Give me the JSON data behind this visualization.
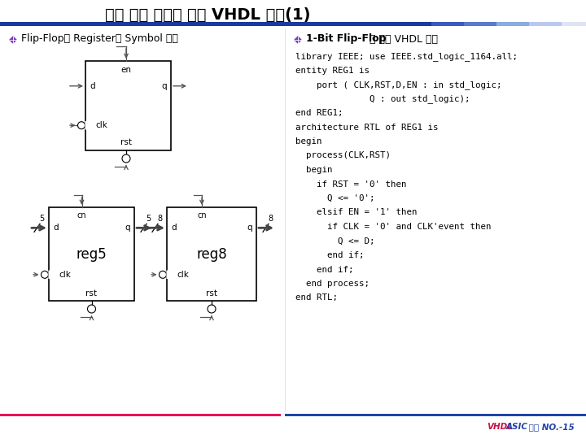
{
  "title_normal": "순서 논리 회로에 대한 ",
  "title_bold": "VHDL 설계(1)",
  "bg_color": "#ffffff",
  "title_color": "#000000",
  "bullet_color": "#7b3fbe",
  "left_bullet_text": "Flip-Flop과 Register의 Symbol 정의",
  "right_bullet_bold": "1-Bit Flip-Flop",
  "right_bullet_normal": "에 대한 VHDL 표현",
  "code_lines": [
    [
      "library IEEE; use IEEE.std_logic_1164.all;",
      false
    ],
    [
      "entity REG1 is",
      false
    ],
    [
      "    port ( CLK,RST,D,EN : in std_logic;",
      false
    ],
    [
      "              Q : out std_logic);",
      false
    ],
    [
      "end REG1;",
      false
    ],
    [
      "architecture RTL of REG1 is",
      false
    ],
    [
      "begin",
      false
    ],
    [
      "  process(CLK,RST)",
      false
    ],
    [
      "  begin",
      false
    ],
    [
      "    if RST = '0' then",
      false
    ],
    [
      "      Q <= '0';",
      false
    ],
    [
      "    elsif EN = '1' then",
      false
    ],
    [
      "      if CLK = '0' and CLK'event then",
      false
    ],
    [
      "        Q <= D;",
      false
    ],
    [
      "      end if;",
      false
    ],
    [
      "    end if;",
      false
    ],
    [
      "  end process;",
      false
    ],
    [
      "end RTL;",
      false
    ]
  ],
  "footer_line1_color": "#e8005a",
  "footer_line2_color": "#2244aa",
  "header_bar_colors": [
    "#1a3a9e",
    "#1a3a9e",
    "#3a5abf",
    "#5a7ace",
    "#8aabdf",
    "#bbc8ee",
    "#dde4f4"
  ],
  "header_bar_stops": [
    0,
    480,
    530,
    570,
    610,
    650,
    690,
    720
  ],
  "footer_vhdl_color": "#cc1144",
  "footer_asic_color": "#2244aa"
}
